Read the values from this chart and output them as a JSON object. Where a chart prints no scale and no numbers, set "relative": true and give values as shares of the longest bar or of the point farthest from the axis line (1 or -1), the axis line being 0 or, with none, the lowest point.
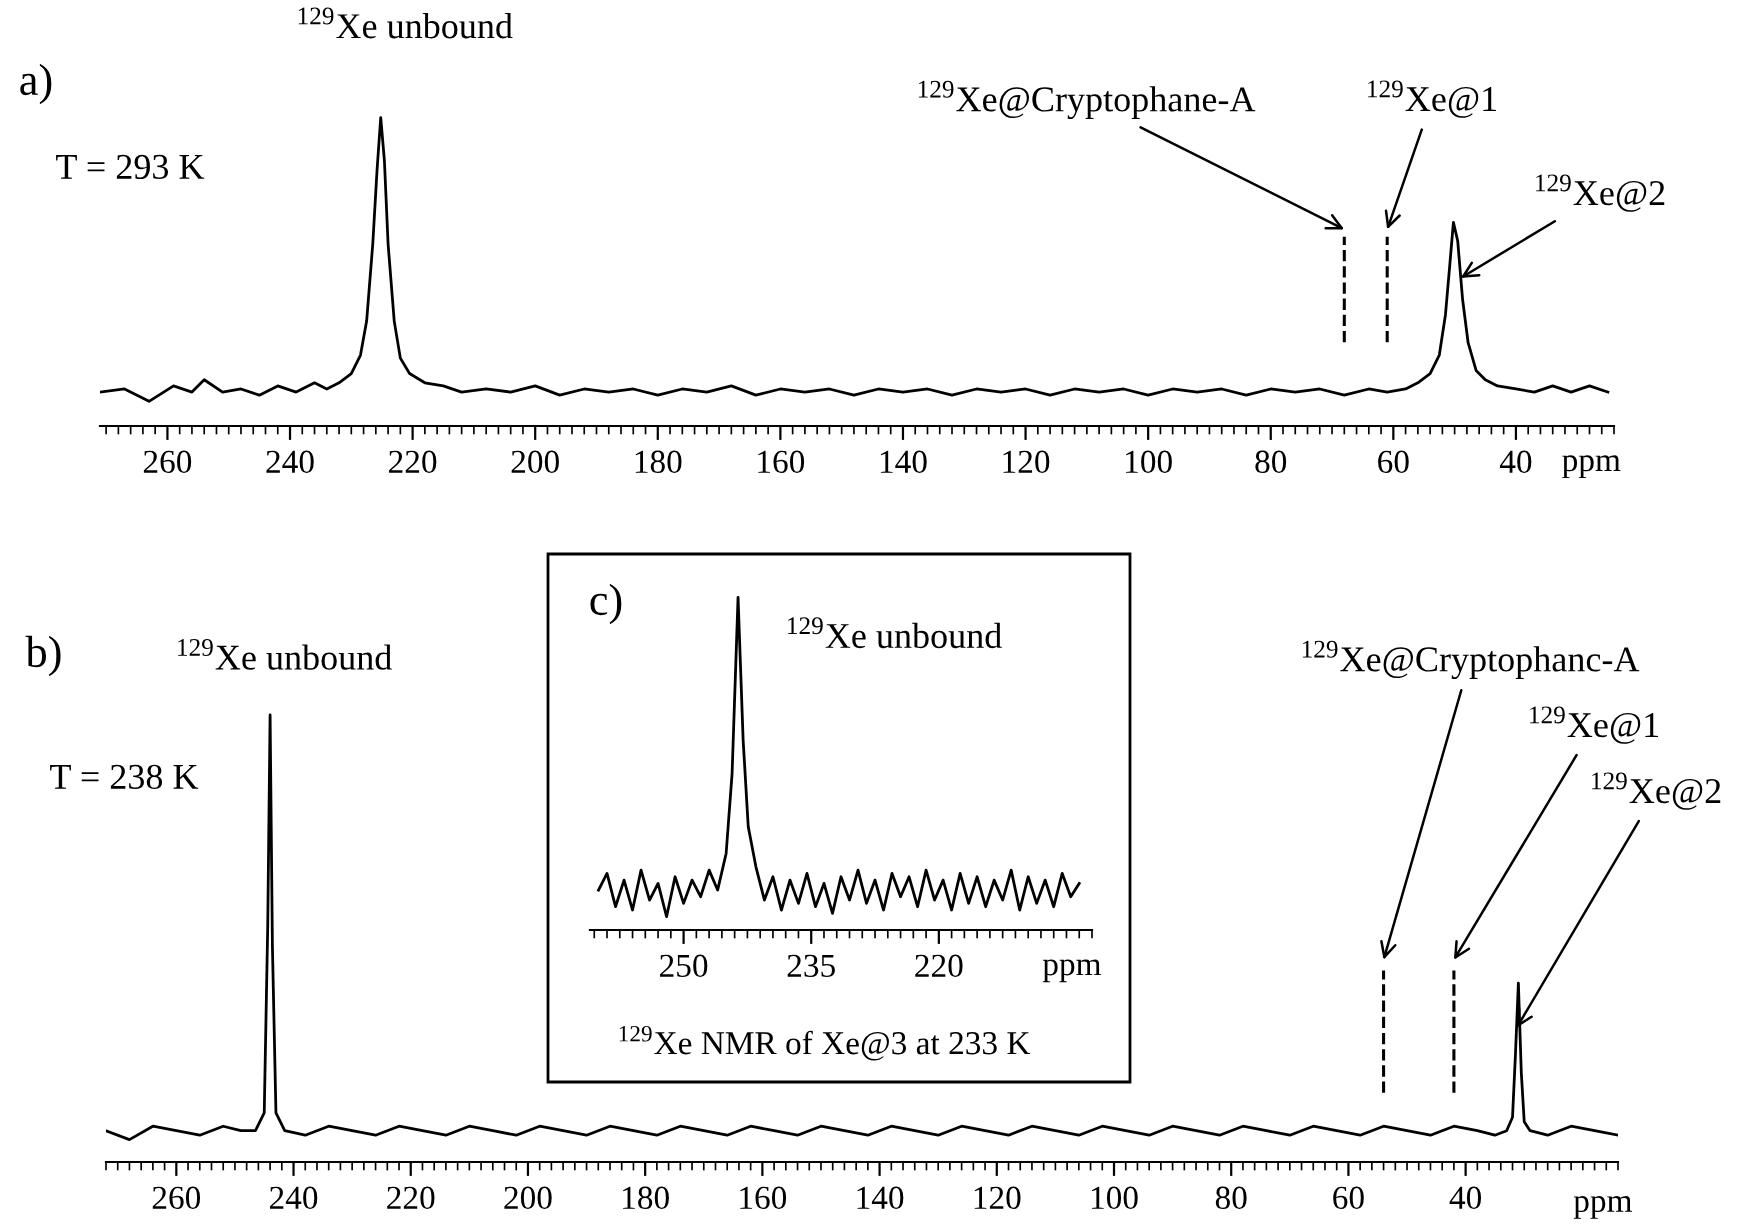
{
  "chart_data": [
    {
      "type": "line",
      "relative": true,
      "xlabel": "ppm",
      "xlim": [
        271,
        24
      ],
      "xticks": [
        260,
        240,
        220,
        200,
        180,
        160,
        140,
        120,
        100,
        80,
        60,
        40
      ],
      "series": [
        {
          "color": "#000000",
          "x": [
            271,
            267,
            263,
            259,
            256,
            254,
            251,
            248,
            245,
            242,
            239,
            236,
            234,
            232,
            230,
            228.5,
            227.5,
            226.5,
            225.8,
            225.2,
            224.6,
            224,
            223,
            222,
            220.5,
            218,
            215,
            212,
            208,
            204,
            200,
            196,
            192,
            188,
            184,
            180,
            176,
            172,
            168,
            164,
            160,
            156,
            152,
            148,
            144,
            140,
            136,
            132,
            128,
            124,
            120,
            116,
            112,
            108,
            104,
            100,
            96,
            92,
            88,
            84,
            80,
            76,
            72,
            68,
            64,
            61,
            58,
            56,
            54,
            52.5,
            51.5,
            50.8,
            50.2,
            49.5,
            48.7,
            47.8,
            46.5,
            45,
            43,
            40,
            37,
            34,
            31,
            28,
            25
          ],
          "values": [
            0.11,
            0.12,
            0.08,
            0.13,
            0.11,
            0.15,
            0.11,
            0.12,
            0.1,
            0.13,
            0.11,
            0.14,
            0.12,
            0.14,
            0.17,
            0.23,
            0.34,
            0.59,
            0.83,
            1,
            0.86,
            0.59,
            0.34,
            0.22,
            0.17,
            0.14,
            0.13,
            0.11,
            0.12,
            0.11,
            0.13,
            0.1,
            0.12,
            0.11,
            0.12,
            0.1,
            0.12,
            0.11,
            0.13,
            0.1,
            0.12,
            0.11,
            0.12,
            0.1,
            0.12,
            0.11,
            0.12,
            0.1,
            0.12,
            0.11,
            0.12,
            0.1,
            0.12,
            0.11,
            0.12,
            0.1,
            0.12,
            0.11,
            0.12,
            0.1,
            0.12,
            0.11,
            0.12,
            0.1,
            0.12,
            0.11,
            0.12,
            0.14,
            0.17,
            0.23,
            0.36,
            0.52,
            0.66,
            0.6,
            0.41,
            0.27,
            0.18,
            0.15,
            0.13,
            0.12,
            0.11,
            0.13,
            0.11,
            0.13,
            0.11
          ]
        }
      ],
      "ref_lines": [
        {
          "axis": "x",
          "value": 68,
          "label": "$^{129}$Xe@Cryptophane-A",
          "line_style": "dashed"
        },
        {
          "axis": "x",
          "value": 61,
          "label": "$^{129}$Xe@1",
          "line_style": "dashed"
        }
      ],
      "annotations": [
        "a)",
        "T = 293 K",
        {
          "text": "$^{129}$Xe unbound",
          "x": 225.2,
          "y": 1
        },
        {
          "text": "$^{129}$Xe@2",
          "x": 49,
          "y": 0.48
        }
      ]
    },
    {
      "type": "line",
      "relative": true,
      "xlabel": "ppm",
      "xlim": [
        272,
        14
      ],
      "xticks": [
        260,
        240,
        220,
        200,
        180,
        160,
        140,
        120,
        100,
        80,
        60,
        40
      ],
      "series": [
        {
          "color": "#000000",
          "x": [
            272,
            268,
            264,
            260,
            256,
            252,
            249,
            246.5,
            245,
            244.4,
            244,
            243.6,
            243,
            241.5,
            238,
            234,
            230,
            226,
            222,
            218,
            214,
            210,
            206,
            202,
            198,
            194,
            190,
            186,
            182,
            178,
            174,
            170,
            166,
            162,
            158,
            154,
            150,
            146,
            142,
            138,
            134,
            130,
            126,
            122,
            118,
            114,
            110,
            106,
            102,
            98,
            94,
            90,
            86,
            82,
            78,
            74,
            70,
            66,
            62,
            58,
            54,
            50,
            46,
            42,
            38,
            35,
            33,
            32,
            31.5,
            31,
            30.5,
            30,
            29,
            26,
            22,
            18,
            14
          ],
          "values": [
            0.07,
            0.05,
            0.08,
            0.07,
            0.06,
            0.08,
            0.07,
            0.07,
            0.11,
            0.53,
            1,
            0.48,
            0.11,
            0.07,
            0.06,
            0.08,
            0.07,
            0.06,
            0.08,
            0.07,
            0.06,
            0.08,
            0.07,
            0.06,
            0.08,
            0.07,
            0.06,
            0.08,
            0.07,
            0.06,
            0.08,
            0.07,
            0.06,
            0.08,
            0.07,
            0.06,
            0.08,
            0.07,
            0.06,
            0.08,
            0.07,
            0.06,
            0.08,
            0.07,
            0.06,
            0.08,
            0.07,
            0.06,
            0.08,
            0.07,
            0.06,
            0.08,
            0.07,
            0.06,
            0.08,
            0.07,
            0.06,
            0.08,
            0.07,
            0.06,
            0.08,
            0.07,
            0.06,
            0.08,
            0.07,
            0.06,
            0.07,
            0.1,
            0.24,
            0.4,
            0.2,
            0.09,
            0.07,
            0.06,
            0.08,
            0.07,
            0.06
          ]
        }
      ],
      "ref_lines": [
        {
          "axis": "x",
          "value": 54,
          "label": "$^{129}$Xe@Cryptophanc-A",
          "line_style": "dashed"
        },
        {
          "axis": "x",
          "value": 42,
          "label": "$^{129}$Xe@1",
          "line_style": "dashed"
        }
      ],
      "annotations": [
        "b)",
        "T = 238 K",
        {
          "text": "$^{129}$Xe unbound",
          "x": 244,
          "y": 1
        },
        {
          "text": "$^{129}$Xe@2",
          "x": 31.3,
          "y": 0.3
        }
      ]
    },
    {
      "type": "line",
      "relative": true,
      "xlabel": "ppm",
      "xlim": [
        261,
        202
      ],
      "xticks": [
        250,
        235,
        220
      ],
      "series": [
        {
          "color": "#000000",
          "x": [
            260,
            259,
            258,
            257,
            256,
            255,
            254,
            253,
            252,
            251,
            250,
            249,
            248,
            247,
            246,
            245,
            244.3,
            243.6,
            243,
            242.4,
            241.5,
            240.5,
            239.5,
            238.5,
            237.5,
            236.5,
            235.5,
            234.5,
            233.5,
            232.5,
            231.5,
            230.5,
            229.5,
            228.5,
            227.5,
            226.5,
            225.5,
            224.5,
            223.5,
            222.5,
            221.5,
            220.5,
            219.5,
            218.5,
            217.5,
            216.5,
            215.5,
            214.5,
            213.5,
            212.5,
            211.5,
            210.5,
            209.5,
            208.5,
            207.5,
            206.5,
            205.5,
            204.5,
            203.5
          ],
          "values": [
            0.12,
            0.17,
            0.07,
            0.15,
            0.06,
            0.18,
            0.09,
            0.14,
            0.04,
            0.16,
            0.08,
            0.15,
            0.1,
            0.18,
            0.12,
            0.23,
            0.47,
            1,
            0.57,
            0.31,
            0.19,
            0.09,
            0.16,
            0.06,
            0.15,
            0.08,
            0.17,
            0.07,
            0.14,
            0.05,
            0.16,
            0.09,
            0.18,
            0.08,
            0.15,
            0.06,
            0.17,
            0.1,
            0.16,
            0.07,
            0.18,
            0.09,
            0.15,
            0.06,
            0.17,
            0.08,
            0.16,
            0.07,
            0.15,
            0.09,
            0.18,
            0.06,
            0.16,
            0.08,
            0.15,
            0.07,
            0.17,
            0.1,
            0.14
          ]
        }
      ],
      "annotations": [
        "c)",
        {
          "text": "$^{129}$Xe unbound",
          "x": 243.6,
          "y": 1
        },
        "$^{129}$Xe NMR of Xe@3 at 233 K"
      ]
    }
  ]
}
